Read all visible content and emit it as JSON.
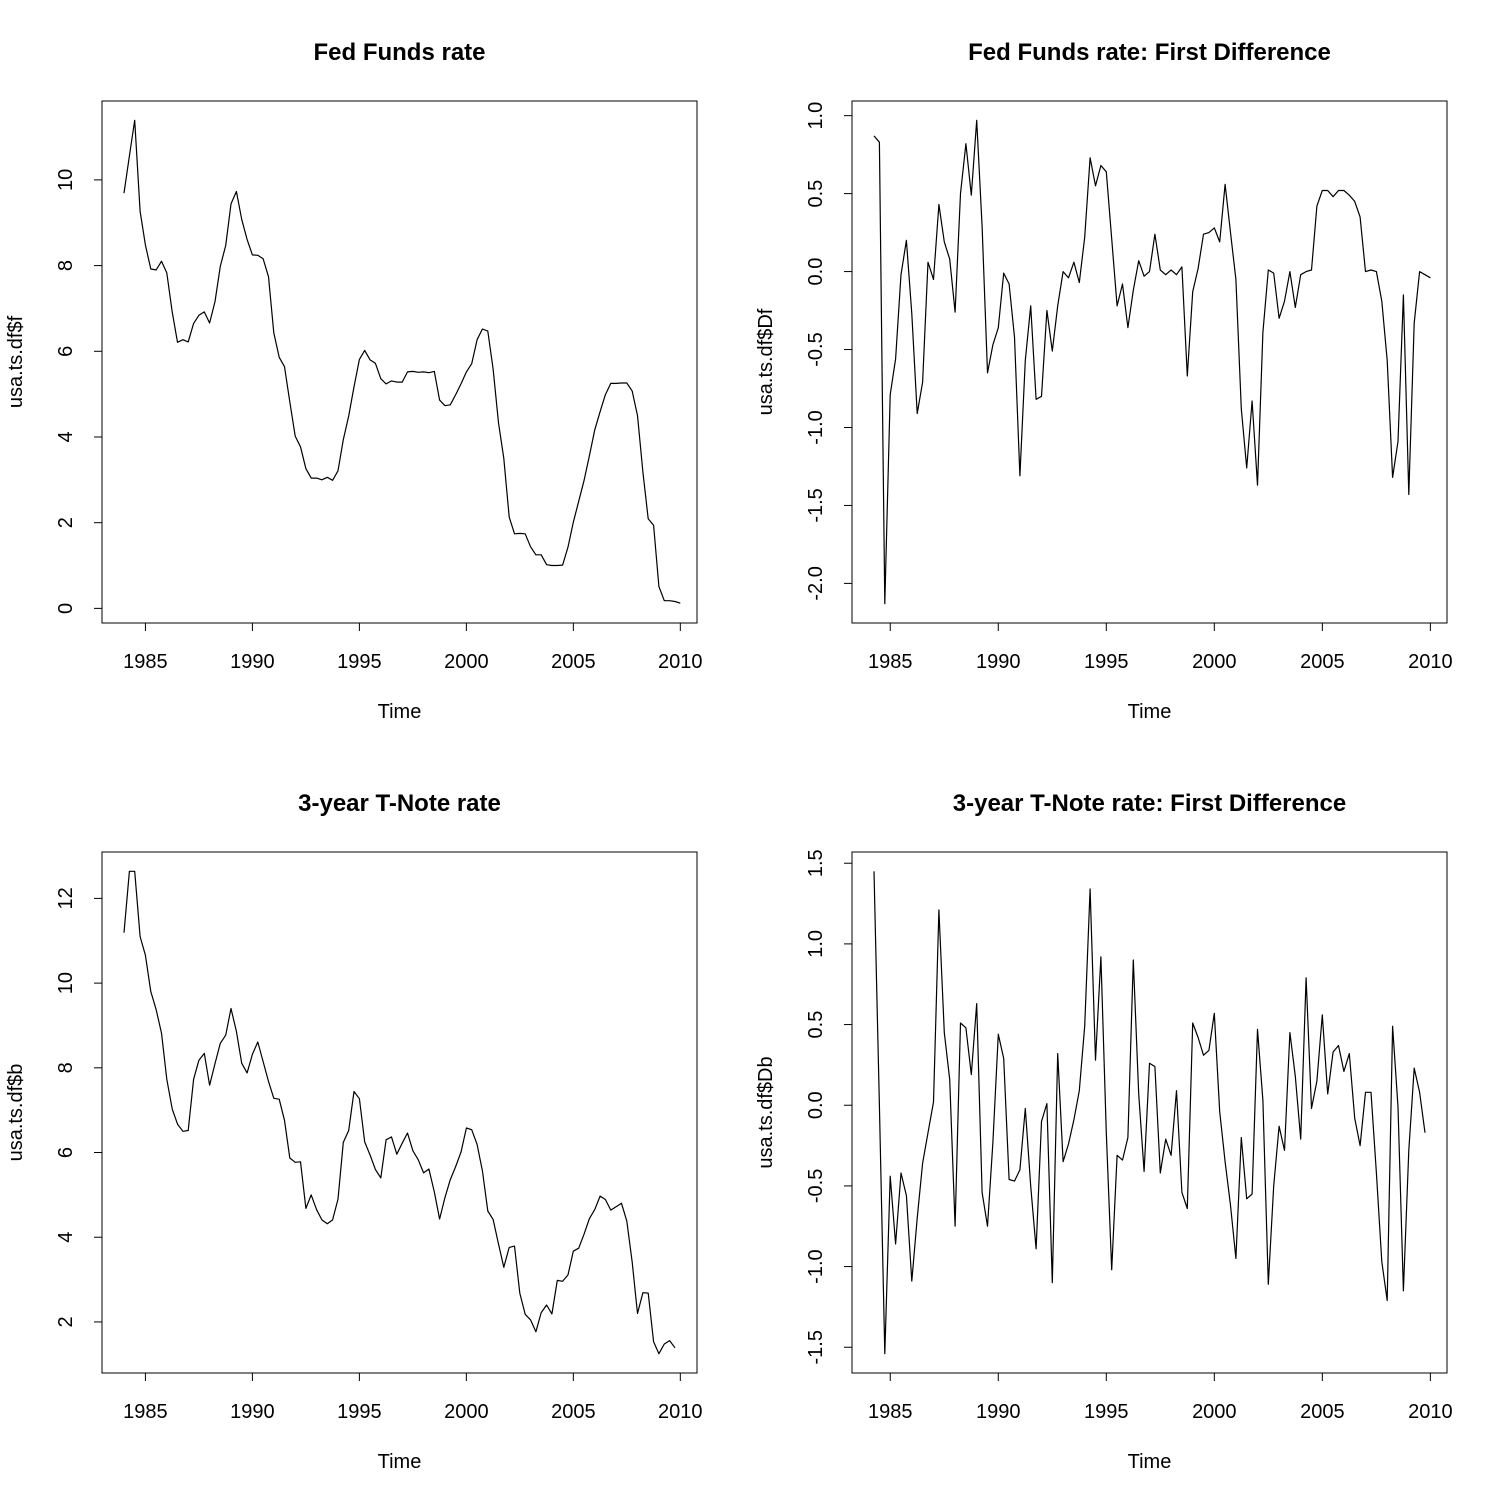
{
  "chart_data": [
    {
      "type": "line",
      "title": "Fed Funds rate",
      "xlabel": "Time",
      "ylabel": "usa.ts.df$f",
      "xlim": [
        1984,
        2009.75
      ],
      "ylim": [
        0.11,
        11.39
      ],
      "xticks": [
        1985,
        1990,
        1995,
        2000,
        2005,
        2010
      ],
      "yticks": [
        0,
        2,
        4,
        6,
        8,
        10
      ],
      "x_start": 1984.0,
      "x_step": 0.25,
      "values": [
        9.69,
        10.56,
        11.39,
        9.27,
        8.48,
        7.92,
        7.9,
        8.1,
        7.83,
        6.92,
        6.21,
        6.27,
        6.22,
        6.65,
        6.84,
        6.92,
        6.66,
        7.16,
        7.98,
        8.47,
        9.44,
        9.73,
        9.08,
        8.61,
        8.25,
        8.24,
        8.16,
        7.74,
        6.43,
        5.86,
        5.64,
        4.82,
        4.02,
        3.77,
        3.26,
        3.04,
        3.04,
        3.0,
        3.06,
        2.99,
        3.21,
        3.94,
        4.49,
        5.17,
        5.81,
        6.02,
        5.8,
        5.72,
        5.36,
        5.24,
        5.31,
        5.28,
        5.28,
        5.52,
        5.53,
        5.51,
        5.52,
        5.5,
        5.53,
        4.86,
        4.73,
        4.75,
        4.99,
        5.24,
        5.52,
        5.71,
        6.27,
        6.52,
        6.47,
        5.59,
        4.33,
        3.5,
        2.13,
        1.74,
        1.75,
        1.74,
        1.44,
        1.25,
        1.25,
        1.02,
        1.0,
        1.0,
        1.01,
        1.43,
        2.01,
        2.5,
        2.98,
        3.56,
        4.16,
        4.59,
        4.99,
        5.25,
        5.25,
        5.26,
        5.26,
        5.07,
        4.5,
        3.18,
        2.09,
        1.94,
        0.51,
        0.18,
        0.18,
        0.16,
        0.12
      ]
    },
    {
      "type": "line",
      "title": "Fed Funds rate: First Difference",
      "xlabel": "Time",
      "ylabel": "usa.ts.df$Df",
      "xlim": [
        1984.25,
        2009.75
      ],
      "ylim": [
        -2.13,
        0.97
      ],
      "xticks": [
        1985,
        1990,
        1995,
        2000,
        2005,
        2010
      ],
      "yticks": [
        -2.0,
        -1.5,
        -1.0,
        -0.5,
        0.0,
        0.5,
        1.0
      ],
      "x_start": 1984.25,
      "x_step": 0.25,
      "values": [
        0.87,
        0.83,
        -2.13,
        -0.79,
        -0.56,
        -0.02,
        0.2,
        -0.27,
        -0.91,
        -0.71,
        0.06,
        -0.05,
        0.43,
        0.19,
        0.08,
        -0.26,
        0.5,
        0.82,
        0.49,
        0.97,
        0.29,
        -0.65,
        -0.47,
        -0.36,
        -0.01,
        -0.08,
        -0.42,
        -1.31,
        -0.57,
        -0.22,
        -0.82,
        -0.8,
        -0.25,
        -0.51,
        -0.22,
        0.0,
        -0.04,
        0.06,
        -0.07,
        0.22,
        0.73,
        0.55,
        0.68,
        0.64,
        0.21,
        -0.22,
        -0.08,
        -0.36,
        -0.12,
        0.07,
        -0.03,
        0.0,
        0.24,
        0.01,
        -0.02,
        0.01,
        -0.02,
        0.03,
        -0.67,
        -0.13,
        0.02,
        0.24,
        0.25,
        0.28,
        0.19,
        0.56,
        0.25,
        -0.05,
        -0.88,
        -1.26,
        -0.83,
        -1.37,
        -0.39,
        0.01,
        -0.01,
        -0.3,
        -0.19,
        0.0,
        -0.23,
        -0.02,
        0.0,
        0.01,
        0.42,
        0.52,
        0.52,
        0.48,
        0.52,
        0.52,
        0.49,
        0.45,
        0.35,
        0.0,
        0.01,
        0.0,
        -0.19,
        -0.57,
        -1.32,
        -1.09,
        -0.15,
        -1.43,
        -0.33,
        0.0,
        -0.02,
        -0.04
      ]
    },
    {
      "type": "line",
      "title": "3-year T-Note rate",
      "xlabel": "Time",
      "ylabel": "usa.ts.df$b",
      "xlim": [
        1984,
        2009.75
      ],
      "ylim": [
        1.25,
        12.64
      ],
      "xticks": [
        1985,
        1990,
        1995,
        2000,
        2005,
        2010
      ],
      "yticks": [
        2,
        4,
        6,
        8,
        10,
        12
      ],
      "x_start": 1984.0,
      "x_step": 0.25,
      "values": [
        11.19,
        12.64,
        12.64,
        11.1,
        10.66,
        9.8,
        9.38,
        8.82,
        7.73,
        7.03,
        6.67,
        6.5,
        6.52,
        7.73,
        8.18,
        8.34,
        7.59,
        8.1,
        8.58,
        8.77,
        9.4,
        8.86,
        8.11,
        7.88,
        8.32,
        8.61,
        8.15,
        7.68,
        7.28,
        7.26,
        6.76,
        5.87,
        5.77,
        5.78,
        4.68,
        5.0,
        4.65,
        4.41,
        4.32,
        4.41,
        4.9,
        6.24,
        6.52,
        7.44,
        7.27,
        6.25,
        5.94,
        5.6,
        5.4,
        6.3,
        6.37,
        5.96,
        6.22,
        6.46,
        6.04,
        5.83,
        5.52,
        5.61,
        5.07,
        4.43,
        4.94,
        5.36,
        5.67,
        6.01,
        6.58,
        6.54,
        6.19,
        5.57,
        4.62,
        4.42,
        3.84,
        3.29,
        3.76,
        3.79,
        2.68,
        2.18,
        2.05,
        1.77,
        2.22,
        2.4,
        2.19,
        2.98,
        2.96,
        3.11,
        3.67,
        3.74,
        4.07,
        4.44,
        4.65,
        4.97,
        4.89,
        4.64,
        4.72,
        4.8,
        4.38,
        3.41,
        2.2,
        2.69,
        2.68,
        1.53,
        1.25,
        1.48,
        1.56,
        1.39
      ]
    },
    {
      "type": "line",
      "title": "3-year T-Note rate: First Difference",
      "xlabel": "Time",
      "ylabel": "usa.ts.df$Db",
      "xlim": [
        1984.25,
        2009.75
      ],
      "ylim": [
        -1.54,
        1.45
      ],
      "xticks": [
        1985,
        1990,
        1995,
        2000,
        2005,
        2010
      ],
      "yticks": [
        -1.5,
        -1.0,
        -0.5,
        0.0,
        0.5,
        1.0,
        1.5
      ],
      "x_start": 1984.25,
      "x_step": 0.25,
      "values": [
        1.45,
        0.0,
        -1.54,
        -0.44,
        -0.86,
        -0.42,
        -0.56,
        -1.09,
        -0.7,
        -0.36,
        -0.17,
        0.02,
        1.21,
        0.45,
        0.16,
        -0.75,
        0.51,
        0.48,
        0.19,
        0.63,
        -0.54,
        -0.75,
        -0.23,
        0.44,
        0.29,
        -0.46,
        -0.47,
        -0.4,
        -0.02,
        -0.5,
        -0.89,
        -0.1,
        0.01,
        -1.1,
        0.32,
        -0.35,
        -0.24,
        -0.09,
        0.09,
        0.49,
        1.34,
        0.28,
        0.92,
        -0.17,
        -1.02,
        -0.31,
        -0.34,
        -0.2,
        0.9,
        0.07,
        -0.41,
        0.26,
        0.24,
        -0.42,
        -0.21,
        -0.31,
        0.09,
        -0.54,
        -0.64,
        0.51,
        0.42,
        0.31,
        0.34,
        0.57,
        -0.04,
        -0.35,
        -0.62,
        -0.95,
        -0.2,
        -0.58,
        -0.55,
        0.47,
        0.03,
        -1.11,
        -0.5,
        -0.13,
        -0.28,
        0.45,
        0.18,
        -0.21,
        0.79,
        -0.02,
        0.15,
        0.56,
        0.07,
        0.33,
        0.37,
        0.21,
        0.32,
        -0.08,
        -0.25,
        0.08,
        0.08,
        -0.42,
        -0.97,
        -1.21,
        0.49,
        -0.01,
        -1.15,
        -0.28,
        0.23,
        0.08,
        -0.17
      ]
    }
  ]
}
